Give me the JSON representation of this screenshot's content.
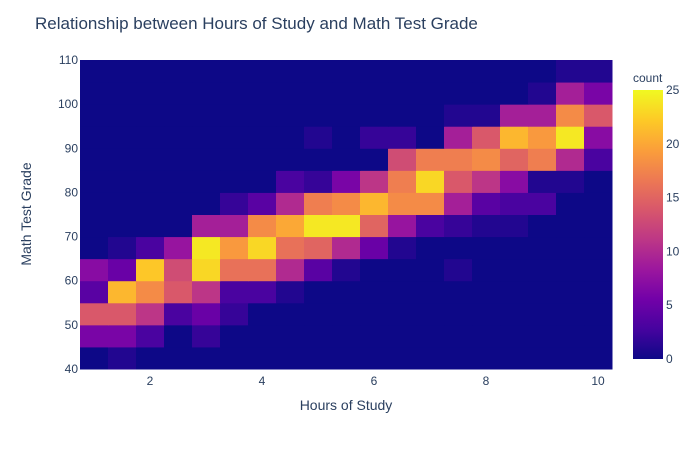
{
  "chart_data": {
    "type": "heatmap",
    "title": "Relationship between Hours of Study and Math Test Grade",
    "xlabel": "Hours of Study",
    "ylabel": "Math Test Grade",
    "x_range": [
      0.75,
      10.25
    ],
    "y_range": [
      40,
      110
    ],
    "x_bin_start": 0.75,
    "x_bin_size": 0.5,
    "y_bin_start": 40,
    "y_bin_size": 5,
    "x_ticks": [
      2,
      4,
      6,
      8,
      10
    ],
    "y_ticks": [
      40,
      50,
      60,
      70,
      80,
      90,
      100,
      110
    ],
    "colorbar": {
      "title": "count",
      "min": 0,
      "max": 25,
      "ticks": [
        0,
        5,
        10,
        15,
        20,
        25
      ],
      "colorscale": [
        "#0d0887",
        "#46039f",
        "#7201a8",
        "#9c179e",
        "#bd3786",
        "#d8576b",
        "#ed7953",
        "#fb9f3a",
        "#fdca26",
        "#f0f921"
      ]
    },
    "z_rows_bottom_to_top": [
      [
        0,
        1,
        0,
        0,
        0,
        0,
        0,
        0,
        0,
        0,
        0,
        0,
        0,
        0,
        0,
        0,
        0,
        0,
        0
      ],
      [
        6,
        6,
        3,
        0,
        2,
        0,
        0,
        0,
        0,
        0,
        0,
        0,
        0,
        0,
        0,
        0,
        0,
        0,
        0
      ],
      [
        14,
        14,
        11,
        3,
        5,
        2,
        0,
        0,
        0,
        0,
        0,
        0,
        0,
        0,
        0,
        0,
        0,
        0,
        0
      ],
      [
        4,
        21,
        18,
        14,
        11,
        3,
        3,
        1,
        0,
        0,
        0,
        0,
        0,
        0,
        0,
        0,
        0,
        0,
        0
      ],
      [
        7,
        5,
        22,
        13,
        23,
        16,
        16,
        10,
        4,
        1,
        0,
        0,
        0,
        1,
        0,
        0,
        0,
        0,
        0
      ],
      [
        0,
        1,
        3,
        8,
        24,
        19,
        23,
        16,
        15,
        10,
        5,
        1,
        0,
        0,
        0,
        0,
        0,
        0,
        0
      ],
      [
        0,
        0,
        0,
        0,
        9,
        9,
        18,
        20,
        24,
        24,
        15,
        8,
        3,
        2,
        1,
        1,
        0,
        0,
        0
      ],
      [
        0,
        0,
        0,
        0,
        0,
        2,
        4,
        10,
        17,
        18,
        21,
        18,
        18,
        9,
        4,
        3,
        3,
        0,
        0
      ],
      [
        0,
        0,
        0,
        0,
        0,
        0,
        0,
        3,
        2,
        6,
        11,
        17,
        23,
        14,
        11,
        7,
        1,
        1,
        0
      ],
      [
        0,
        0,
        0,
        0,
        0,
        0,
        0,
        0,
        0,
        0,
        0,
        13,
        17,
        17,
        18,
        15,
        17,
        10,
        3
      ],
      [
        0,
        0,
        0,
        0,
        0,
        0,
        0,
        0,
        1,
        0,
        2,
        2,
        0,
        9,
        14,
        21,
        19,
        24,
        7
      ],
      [
        0,
        0,
        0,
        0,
        0,
        0,
        0,
        0,
        0,
        0,
        0,
        0,
        0,
        1,
        1,
        9,
        9,
        18,
        14
      ],
      [
        0,
        0,
        0,
        0,
        0,
        0,
        0,
        0,
        0,
        0,
        0,
        0,
        0,
        0,
        0,
        0,
        1,
        9,
        6
      ],
      [
        0,
        0,
        0,
        0,
        0,
        0,
        0,
        0,
        0,
        0,
        0,
        0,
        0,
        0,
        0,
        0,
        0,
        1,
        1
      ]
    ]
  }
}
